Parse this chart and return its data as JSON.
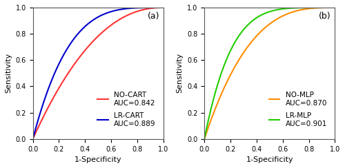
{
  "fig_width": 5.0,
  "fig_height": 2.44,
  "dpi": 100,
  "background_color": "#FFFFFF",
  "tick_fontsize": 7,
  "label_fontsize": 8,
  "legend_fontsize": 7.5,
  "linewidth": 1.5,
  "subplot_label_fontsize": 9,
  "panel_a": {
    "label": "(a)",
    "curves": [
      {
        "name": "NO-CART",
        "auc": "0.842",
        "color": "#FF3333",
        "exponent": 2.2
      },
      {
        "name": "LR-CART",
        "auc": "0.889",
        "color": "#0000CC",
        "exponent": 3.8
      }
    ],
    "xlabel": "1-Specificity",
    "ylabel": "Sensitivity",
    "xlim": [
      0.0,
      1.0
    ],
    "ylim": [
      0.0,
      1.0
    ],
    "xticks": [
      0.0,
      0.2,
      0.4,
      0.6,
      0.8,
      1.0
    ],
    "yticks": [
      0.0,
      0.2,
      0.4,
      0.6,
      0.8,
      1.0
    ]
  },
  "panel_b": {
    "label": "(b)",
    "curves": [
      {
        "name": "NO-MLP",
        "auc": "0.870",
        "color": "#FF8C00",
        "exponent": 3.0
      },
      {
        "name": "LR-MLP",
        "auc": "0.901",
        "color": "#22CC00",
        "exponent": 5.0
      }
    ],
    "xlabel": "1-Specificity",
    "ylabel": "Sensitivity",
    "xlim": [
      0.0,
      1.0
    ],
    "ylim": [
      0.0,
      1.0
    ],
    "xticks": [
      0.0,
      0.2,
      0.4,
      0.6,
      0.8,
      1.0
    ],
    "yticks": [
      0.0,
      0.2,
      0.4,
      0.6,
      0.8,
      1.0
    ]
  }
}
